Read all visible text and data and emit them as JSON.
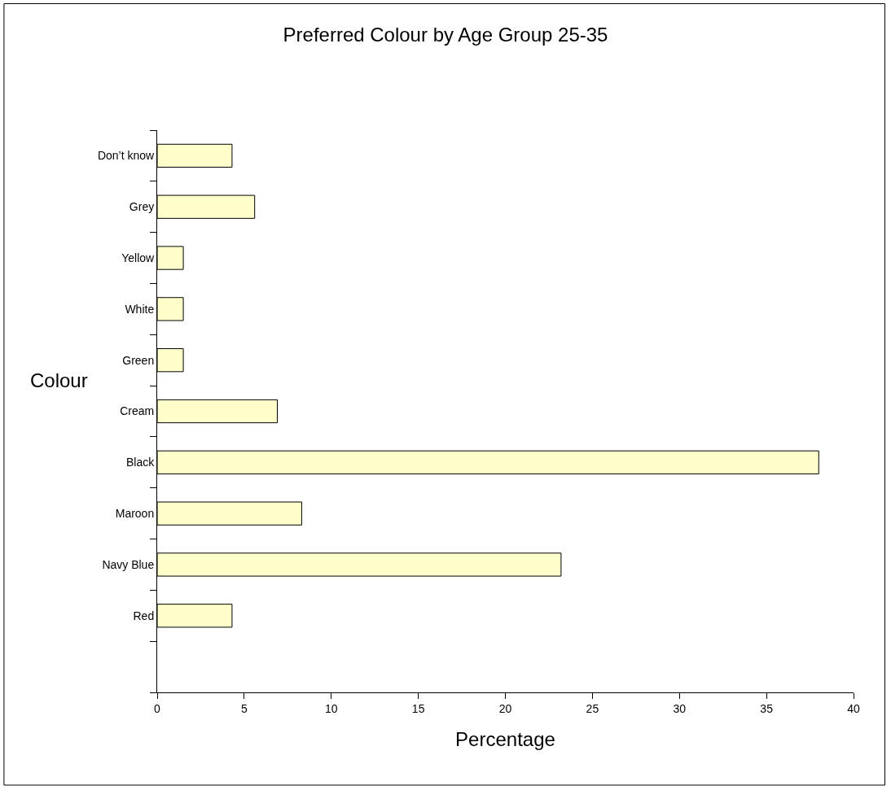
{
  "chart_data": {
    "type": "bar",
    "orientation": "horizontal",
    "title": "Preferred Colour by Age Group 25-35",
    "xlabel": "Percentage",
    "ylabel": "Colour",
    "categories": [
      "Don’t know",
      "Grey",
      "Yellow",
      "White",
      "Green",
      "Cream",
      "Black",
      "Maroon",
      "Navy Blue",
      "Red"
    ],
    "values": [
      4.3,
      5.6,
      1.5,
      1.5,
      1.5,
      6.9,
      38,
      8.3,
      23.2,
      4.3
    ],
    "color": "#ffffcc",
    "xlim": [
      0,
      40
    ],
    "xticks": [
      0,
      5,
      10,
      15,
      20,
      25,
      30,
      35,
      40
    ]
  }
}
